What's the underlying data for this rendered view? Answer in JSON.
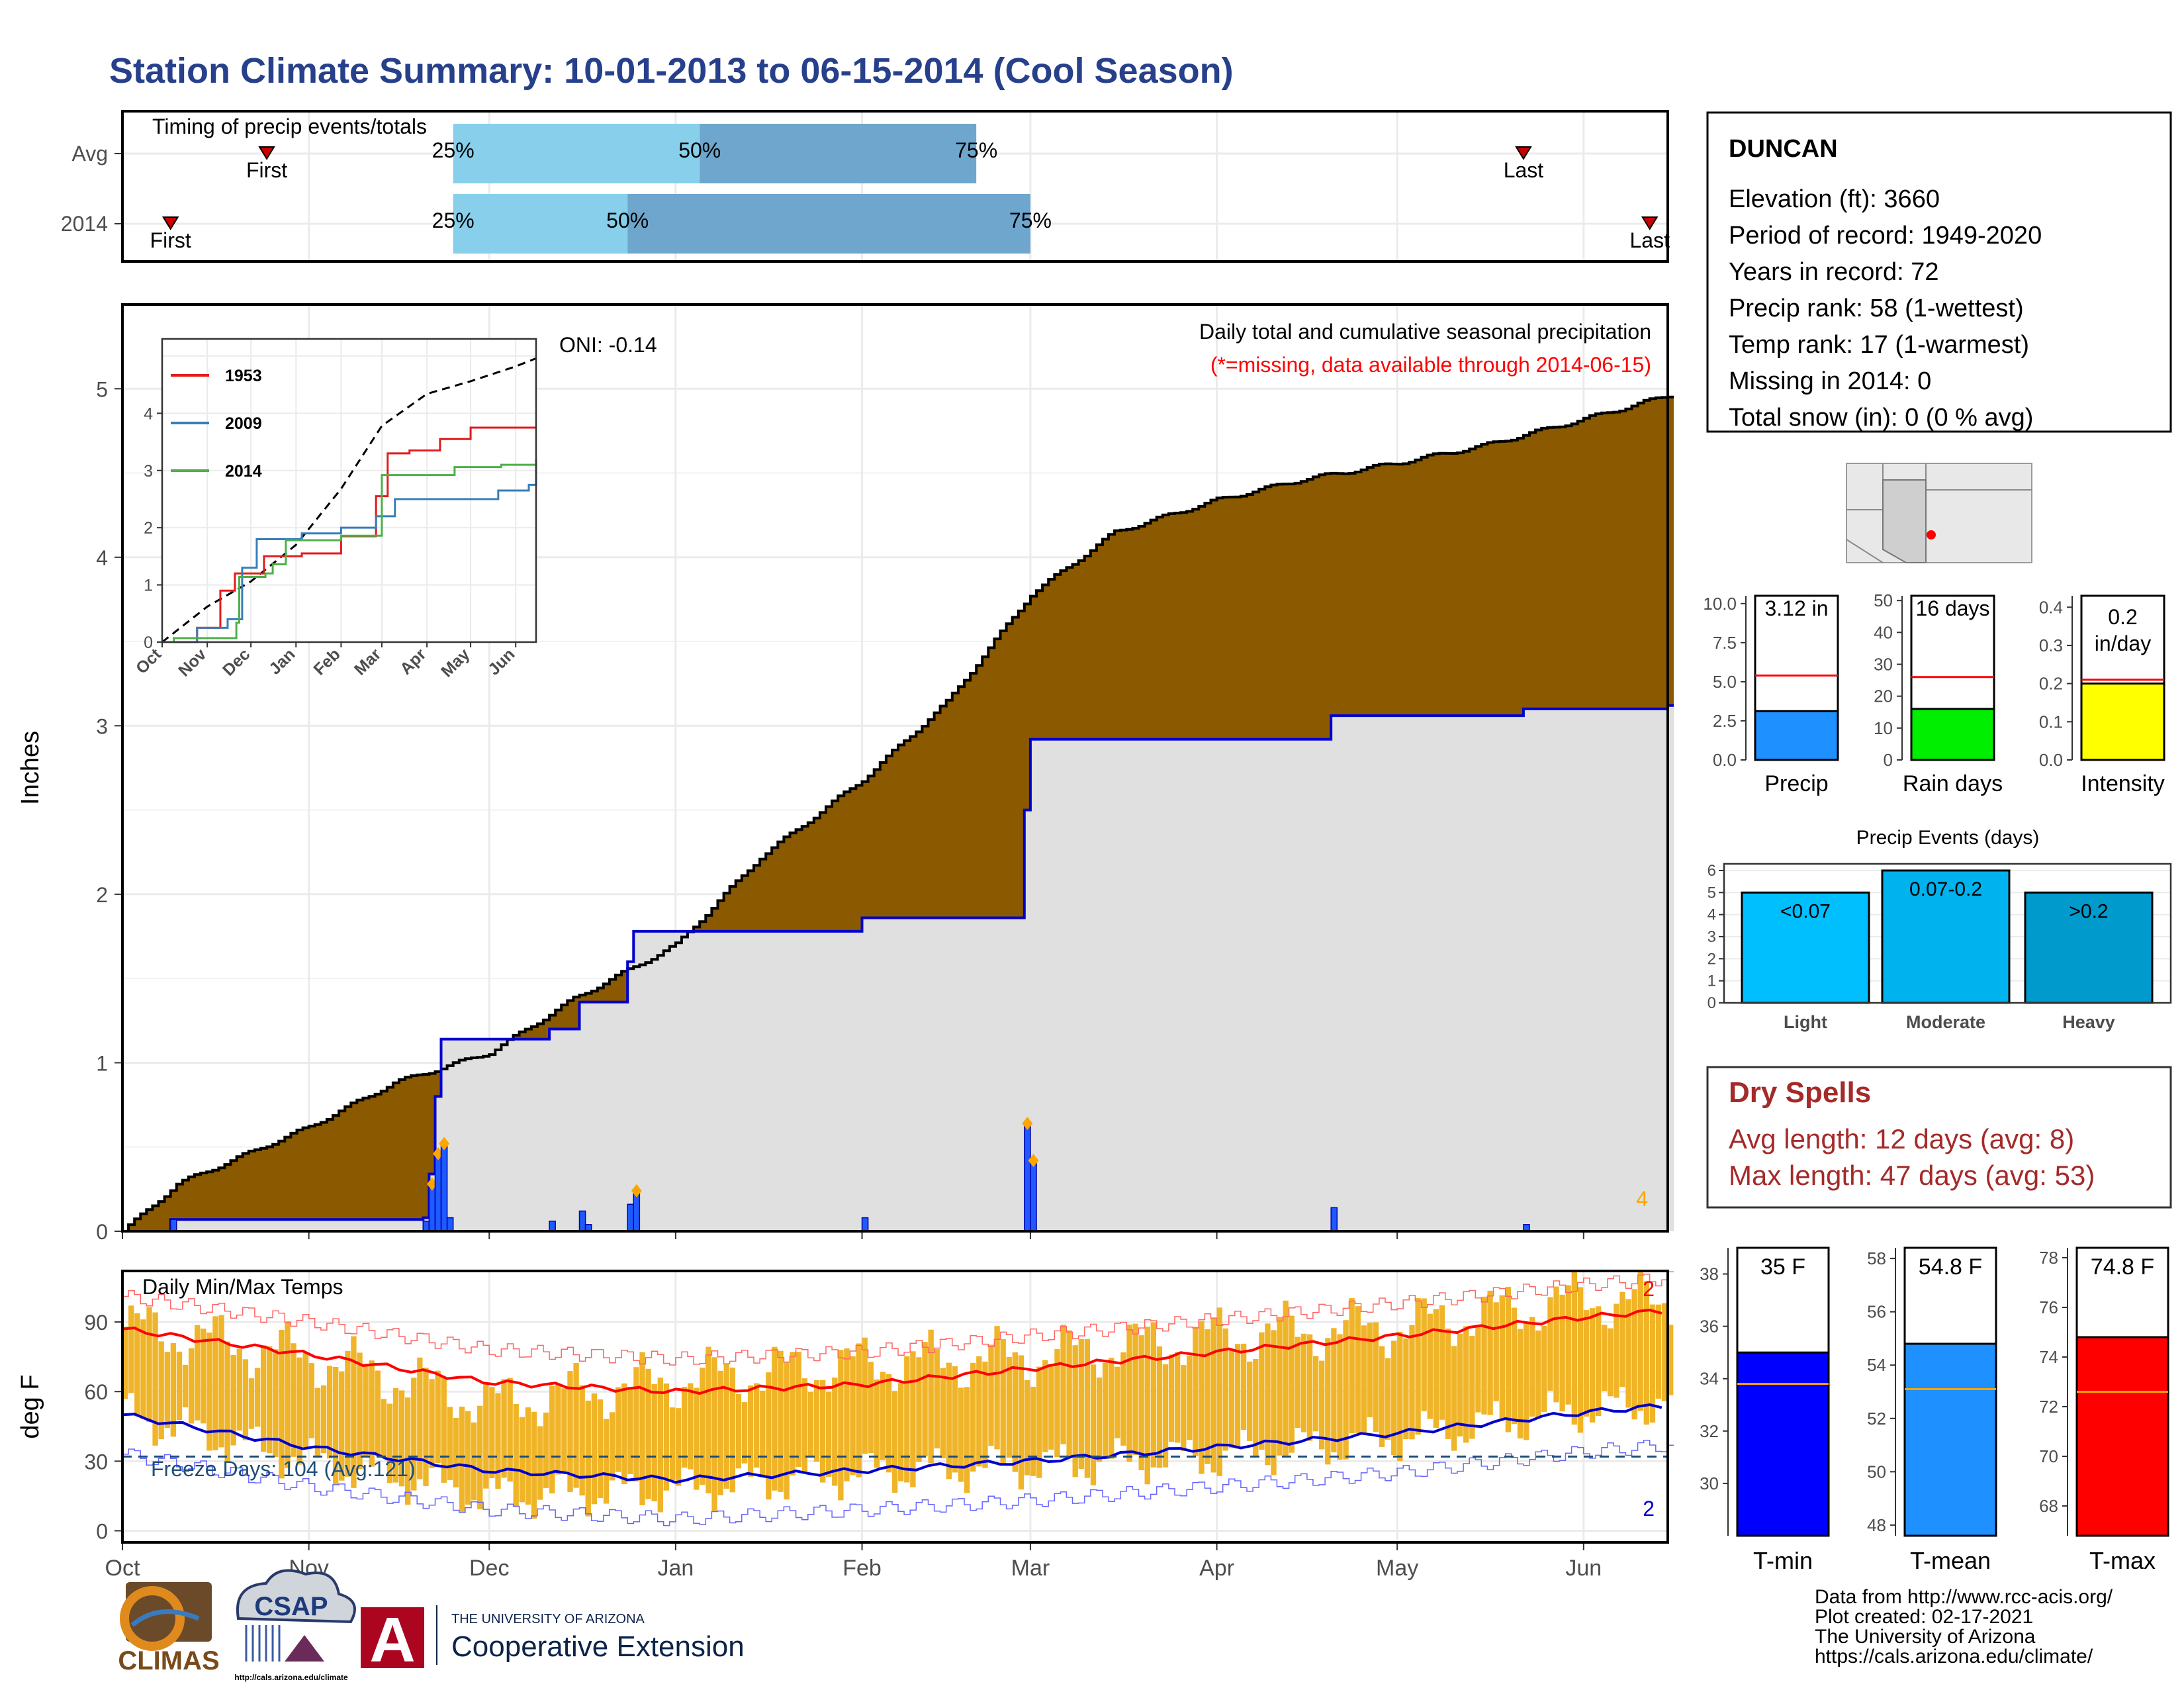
{
  "page": {
    "title": "Station Climate Summary: 10-01-2013 to 06-15-2014 (Cool Season)"
  },
  "timing": {
    "title": "Timing of precip events/totals",
    "rows": [
      {
        "label": "Avg",
        "first_label": "First",
        "last_label": "Last",
        "first_date": "2013-10-25",
        "last_date": "2014-05-22",
        "p25_date": "2013-11-25",
        "p50_date": "2014-01-05",
        "p75_date": "2014-02-20",
        "p25_label": "25%",
        "p50_label": "50%",
        "p75_label": "75%"
      },
      {
        "label": "2014",
        "first_label": "First",
        "last_label": "Last",
        "first_date": "2013-10-09",
        "last_date": "2014-06-12",
        "p25_date": "2013-11-25",
        "p50_date": "2013-12-24",
        "p75_date": "2014-03-01",
        "p25_label": "25%",
        "p50_label": "50%",
        "p75_label": "75%"
      }
    ]
  },
  "station": {
    "name": "DUNCAN",
    "lines": [
      "Elevation (ft): 3660",
      "Period of record: 1949-2020",
      "Years in record: 72",
      "Precip rank: 58 (1-wettest)",
      "Temp rank: 17 (1-warmest)",
      "Missing in 2014: 0",
      "Total snow (in): 0 (0 % avg)"
    ]
  },
  "precip_panel": {
    "ylabel": "Inches",
    "header_line1": "Daily total and cumulative seasonal precipitation",
    "header_line2": "(*=missing, data available through 2014-06-15)",
    "corner_count": "4"
  },
  "inset": {
    "oni_label": "ONI: -0.14",
    "legend": [
      {
        "name": "1953",
        "color": "#e41a1c"
      },
      {
        "name": "2009",
        "color": "#377eb8"
      },
      {
        "name": "2014",
        "color": "#4daf4a"
      }
    ],
    "yticks": [
      "0",
      "1",
      "2",
      "3",
      "4"
    ],
    "xticks": [
      "Oct",
      "Nov",
      "Dec",
      "Jan",
      "Feb",
      "Mar",
      "Apr",
      "May",
      "Jun"
    ]
  },
  "temp_panel": {
    "ylabel": "deg F",
    "title": "Daily Min/Max Temps",
    "freeze_label": "Freeze Days: 104 (Avg:121)",
    "max_count": "2",
    "min_count": "2",
    "yticks": [
      "0",
      "30",
      "60",
      "90"
    ]
  },
  "month_axis": [
    "Oct",
    "Nov",
    "Dec",
    "Jan",
    "Feb",
    "Mar",
    "Apr",
    "May",
    "Jun"
  ],
  "main_yticks": [
    "0",
    "1",
    "2",
    "3",
    "4",
    "5"
  ],
  "small_bars": [
    {
      "label": "Precip",
      "value": 3.12,
      "avg": 5.4,
      "value_text": "3.12 in",
      "yticks": [
        "0.0",
        "2.5",
        "5.0",
        "7.5",
        "10.0"
      ],
      "color": "#1e90ff"
    },
    {
      "label": "Rain days",
      "value": 16,
      "avg": 26,
      "value_text": "16 days",
      "yticks": [
        "0",
        "10",
        "20",
        "30",
        "40",
        "50"
      ],
      "color": "#00ee00"
    },
    {
      "label": "Intensity",
      "value": 0.2,
      "avg": 0.21,
      "value_text_1": "0.2",
      "value_text_2": "in/day",
      "yticks": [
        "0.0",
        "0.1",
        "0.2",
        "0.3",
        "0.4"
      ],
      "color": "#ffff00"
    }
  ],
  "events": {
    "title": "Precip Events (days)",
    "yticks": [
      "0",
      "1",
      "2",
      "3",
      "4",
      "5",
      "6"
    ],
    "bars": [
      {
        "label": "Light",
        "range": "<0.07",
        "value": 5,
        "color": "#00bfff"
      },
      {
        "label": "Moderate",
        "range": "0.07-0.2",
        "value": 6,
        "color": "#00b2ee"
      },
      {
        "label": "Heavy",
        "range": ">0.2",
        "value": 5,
        "color": "#009acd"
      }
    ]
  },
  "dry_spells": {
    "title": "Dry Spells",
    "avg_line": "Avg length: 12 days (avg: 8)",
    "max_line": "Max length: 47 days (avg: 53)"
  },
  "temp_bars": [
    {
      "label": "T-min",
      "value": 35.0,
      "avg": 33.8,
      "value_text": "35 F",
      "ymin": 28,
      "ymax": 39,
      "yticks": [
        "30",
        "32",
        "34",
        "36",
        "38"
      ],
      "color": "#0000ff"
    },
    {
      "label": "T-mean",
      "value": 54.8,
      "avg": 53.1,
      "value_text": "54.8 F",
      "ymin": 47.6,
      "ymax": 58.4,
      "yticks": [
        "48",
        "50",
        "52",
        "54",
        "56",
        "58"
      ],
      "color": "#1e90ff"
    },
    {
      "label": "T-max",
      "value": 74.8,
      "avg": 72.6,
      "value_text": "74.8 F",
      "ymin": 66.8,
      "ymax": 78.4,
      "yticks": [
        "68",
        "70",
        "72",
        "74",
        "76",
        "78"
      ],
      "color": "#ff0000"
    }
  ],
  "footer": {
    "line1": "Data from http://www.rcc-acis.org/",
    "line2": "Plot created: 02-17-2021",
    "line3": "The University of Arizona",
    "line4": "https://cals.arizona.edu/climate/",
    "logo_climas": "CLIMAS",
    "logo_csap": "CSAP",
    "logo_csap_url": "http://cals.arizona.edu/climate",
    "ua_small": "THE UNIVERSITY OF ARIZONA",
    "ua_big": "Cooperative Extension",
    "ua_letter": "A"
  },
  "colors": {
    "title": "#27408b",
    "cum_fill": "#8b5a00",
    "obs_fill": "#e0e0e0",
    "obs_line": "#0000cd",
    "daily_bar": "#1e5aff",
    "temp_bar": "#f0b428",
    "tmax_avg": "#ff0000",
    "tmin_avg": "#0000cd",
    "marker": "#ffa500",
    "dry_text": "#a52a2a"
  },
  "chart_data": [
    {
      "type": "area",
      "title": "Daily total and cumulative seasonal precipitation",
      "ylabel": "Inches",
      "ylim": [
        0,
        5.5
      ],
      "x_range": [
        "2013-10-01",
        "2014-06-15"
      ],
      "series": [
        {
          "name": "Avg cumulative",
          "points": [
            [
              "2013-10-01",
              0
            ],
            [
              "2013-10-10",
              0.28
            ],
            [
              "2013-11-01",
              0.62
            ],
            [
              "2013-11-15",
              0.88
            ],
            [
              "2013-12-01",
              1.06
            ],
            [
              "2013-12-15",
              1.38
            ],
            [
              "2014-01-01",
              1.7
            ],
            [
              "2014-01-15",
              2.22
            ],
            [
              "2014-02-01",
              2.68
            ],
            [
              "2014-02-15",
              3.14
            ],
            [
              "2014-03-01",
              3.78
            ],
            [
              "2014-03-15",
              4.15
            ],
            [
              "2014-04-01",
              4.34
            ],
            [
              "2014-04-15",
              4.46
            ],
            [
              "2014-05-01",
              4.56
            ],
            [
              "2014-05-15",
              4.66
            ],
            [
              "2014-06-01",
              4.82
            ],
            [
              "2014-06-15",
              4.96
            ]
          ]
        },
        {
          "name": "2014 cumulative",
          "points": [
            [
              "2013-10-01",
              0
            ],
            [
              "2013-10-09",
              0.07
            ],
            [
              "2013-11-20",
              0.08
            ],
            [
              "2013-11-21",
              0.34
            ],
            [
              "2013-11-22",
              0.8
            ],
            [
              "2013-11-23",
              1.14
            ],
            [
              "2013-12-11",
              1.2
            ],
            [
              "2013-12-16",
              1.36
            ],
            [
              "2013-12-24",
              1.6
            ],
            [
              "2013-12-25",
              1.78
            ],
            [
              "2014-02-01",
              1.86
            ],
            [
              "2014-02-28",
              2.5
            ],
            [
              "2014-03-01",
              2.92
            ],
            [
              "2014-04-20",
              3.06
            ],
            [
              "2014-05-22",
              3.1
            ],
            [
              "2014-06-15",
              3.12
            ]
          ]
        },
        {
          "name": "2014 daily",
          "points": [
            [
              "2013-10-09",
              0.07
            ],
            [
              "2013-11-20",
              0.06
            ],
            [
              "2013-11-21",
              0.28
            ],
            [
              "2013-11-22",
              0.46
            ],
            [
              "2013-11-23",
              0.52
            ],
            [
              "2013-11-24",
              0.08
            ],
            [
              "2013-12-11",
              0.06
            ],
            [
              "2013-12-16",
              0.12
            ],
            [
              "2013-12-17",
              0.04
            ],
            [
              "2013-12-24",
              0.16
            ],
            [
              "2013-12-25",
              0.24
            ],
            [
              "2014-02-01",
              0.08
            ],
            [
              "2014-02-28",
              0.64
            ],
            [
              "2014-03-01",
              0.42
            ],
            [
              "2014-04-20",
              0.14
            ],
            [
              "2014-05-22",
              0.04
            ]
          ]
        }
      ]
    },
    {
      "type": "line",
      "title": "ONI: -0.14",
      "ylim": [
        0,
        5.3
      ],
      "series": [
        {
          "name": "Avg",
          "points": [
            [
              "2013-10-01",
              0
            ],
            [
              "2013-11-01",
              0.62
            ],
            [
              "2013-12-01",
              1.06
            ],
            [
              "2014-01-01",
              1.7
            ],
            [
              "2014-02-01",
              2.68
            ],
            [
              "2014-03-01",
              3.78
            ],
            [
              "2014-04-01",
              4.34
            ],
            [
              "2014-05-01",
              4.56
            ],
            [
              "2014-06-01",
              4.82
            ],
            [
              "2014-06-15",
              4.96
            ]
          ]
        },
        {
          "name": "1953",
          "points": [
            [
              "2013-10-01",
              0
            ],
            [
              "2013-10-25",
              0.25
            ],
            [
              "2013-11-10",
              0.9
            ],
            [
              "2013-11-20",
              1.2
            ],
            [
              "2013-12-10",
              1.5
            ],
            [
              "2014-01-05",
              1.55
            ],
            [
              "2014-02-01",
              1.85
            ],
            [
              "2014-02-25",
              2.55
            ],
            [
              "2014-03-05",
              3.3
            ],
            [
              "2014-03-20",
              3.35
            ],
            [
              "2014-04-10",
              3.55
            ],
            [
              "2014-05-01",
              3.75
            ],
            [
              "2014-06-15",
              3.75
            ]
          ]
        },
        {
          "name": "2009",
          "points": [
            [
              "2013-10-01",
              0
            ],
            [
              "2013-10-25",
              0.25
            ],
            [
              "2013-11-15",
              0.4
            ],
            [
              "2013-11-25",
              1.3
            ],
            [
              "2013-12-05",
              1.8
            ],
            [
              "2014-01-05",
              1.9
            ],
            [
              "2014-02-01",
              2.0
            ],
            [
              "2014-02-25",
              2.2
            ],
            [
              "2014-03-10",
              2.5
            ],
            [
              "2014-04-10",
              2.5
            ],
            [
              "2014-05-20",
              2.65
            ],
            [
              "2014-06-10",
              2.75
            ],
            [
              "2014-06-15",
              3.2
            ]
          ]
        },
        {
          "name": "2014",
          "points": [
            [
              "2013-10-01",
              0
            ],
            [
              "2013-10-09",
              0.07
            ],
            [
              "2013-11-21",
              0.34
            ],
            [
              "2013-11-23",
              1.14
            ],
            [
              "2013-12-11",
              1.2
            ],
            [
              "2013-12-16",
              1.36
            ],
            [
              "2013-12-25",
              1.78
            ],
            [
              "2014-02-01",
              1.86
            ],
            [
              "2014-03-01",
              2.92
            ],
            [
              "2014-04-20",
              3.06
            ],
            [
              "2014-05-22",
              3.1
            ],
            [
              "2014-06-15",
              3.12
            ]
          ]
        }
      ]
    },
    {
      "type": "bar",
      "title": "Daily Min/Max Temps",
      "ylabel": "deg F",
      "ylim": [
        -5,
        112
      ],
      "x_range": [
        "2013-10-01",
        "2014-06-15"
      ],
      "series": [
        {
          "name": "Avg Tmax",
          "points": [
            [
              "2013-10-01",
              87
            ],
            [
              "2013-11-01",
              76
            ],
            [
              "2013-12-01",
              64
            ],
            [
              "2014-01-01",
              60
            ],
            [
              "2014-02-01",
              63
            ],
            [
              "2014-03-01",
              70
            ],
            [
              "2014-04-01",
              77
            ],
            [
              "2014-05-01",
              84
            ],
            [
              "2014-06-01",
              92
            ],
            [
              "2014-06-15",
              95
            ]
          ]
        },
        {
          "name": "Avg Tmin",
          "points": [
            [
              "2013-10-01",
              50
            ],
            [
              "2013-11-01",
              36
            ],
            [
              "2013-12-01",
              26
            ],
            [
              "2014-01-01",
              22
            ],
            [
              "2014-02-01",
              26
            ],
            [
              "2014-03-01",
              30
            ],
            [
              "2014-04-01",
              36
            ],
            [
              "2014-05-01",
              42
            ],
            [
              "2014-06-01",
              51
            ],
            [
              "2014-06-15",
              54
            ]
          ]
        },
        {
          "name": "Daily Tmax (approx)",
          "points": [
            [
              "2013-10-01",
              88
            ],
            [
              "2013-11-01",
              75
            ],
            [
              "2013-12-01",
              55
            ],
            [
              "2014-01-01",
              65
            ],
            [
              "2014-02-01",
              72
            ],
            [
              "2014-03-01",
              75
            ],
            [
              "2014-04-01",
              84
            ],
            [
              "2014-05-01",
              88
            ],
            [
              "2014-06-01",
              100
            ],
            [
              "2014-06-15",
              98
            ]
          ]
        },
        {
          "name": "Daily Tmin (approx)",
          "points": [
            [
              "2013-10-01",
              50
            ],
            [
              "2013-11-01",
              30
            ],
            [
              "2013-12-01",
              15
            ],
            [
              "2014-01-01",
              18
            ],
            [
              "2014-02-01",
              25
            ],
            [
              "2014-03-01",
              28
            ],
            [
              "2014-04-01",
              32
            ],
            [
              "2014-05-01",
              40
            ],
            [
              "2014-06-01",
              52
            ],
            [
              "2014-06-15",
              55
            ]
          ]
        }
      ]
    },
    {
      "type": "bar",
      "title": "Precip Events (days)",
      "categories": [
        "Light",
        "Moderate",
        "Heavy"
      ],
      "values": [
        5,
        6,
        5
      ],
      "ylim": [
        0,
        6.3
      ]
    }
  ]
}
